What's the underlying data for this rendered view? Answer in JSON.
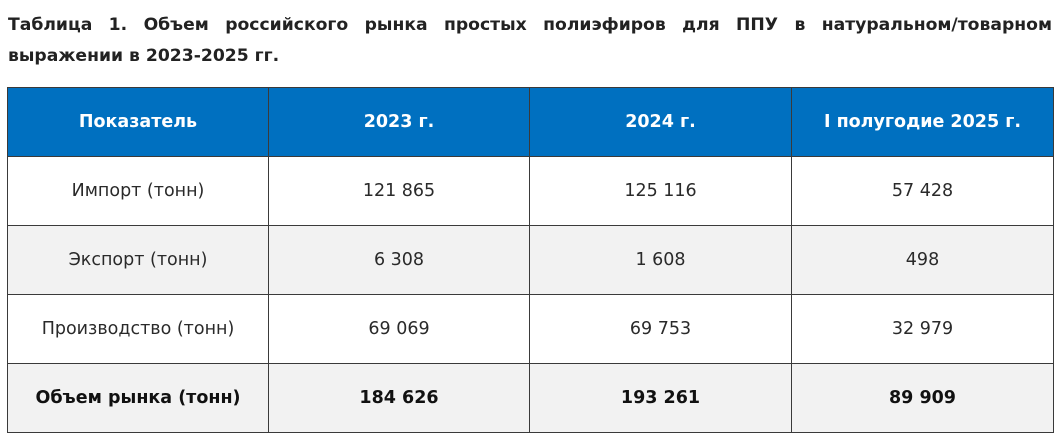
{
  "caption": "Таблица 1. Объем российского рынка простых полиэфиров для ППУ в натуральном/товарном выражении в 2023-2025 гг.",
  "table": {
    "headers": [
      "Показатель",
      "2023 г.",
      "2024 г.",
      "I полугодие 2025 г."
    ],
    "rows": [
      [
        "Импорт (тонн)",
        "121 865",
        "125 116",
        "57 428"
      ],
      [
        "Экспорт (тонн)",
        "6 308",
        "1 608",
        "498"
      ],
      [
        "Производство (тонн)",
        "69 069",
        "69 753",
        "32 979"
      ],
      [
        "Объем рынка (тонн)",
        "184 626",
        "193 261",
        "89 909"
      ]
    ]
  },
  "colors": {
    "header_background": "#0070c0",
    "header_text": "#ffffff",
    "shaded_row": "#f2f2f2",
    "border": "#3a3a3a"
  }
}
